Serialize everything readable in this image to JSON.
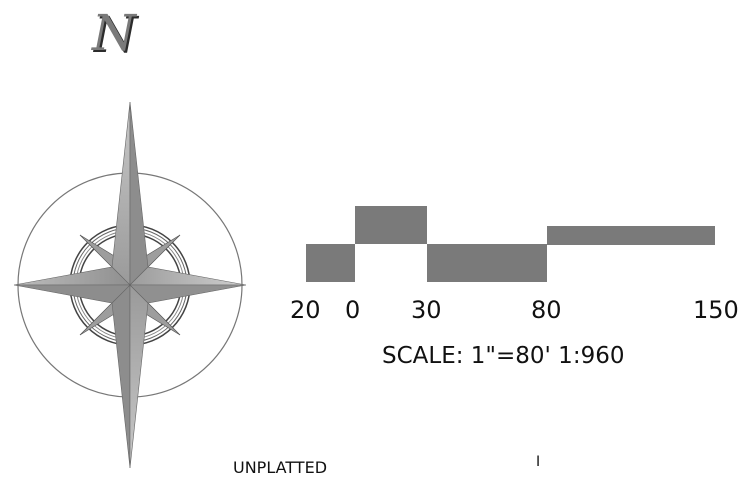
{
  "north_arrow": {
    "letter": "N",
    "icon": "north-arrow-compass-rose-icon",
    "ring_color": "#777777",
    "star_color": "#a8a8a8"
  },
  "scale_bar": {
    "tick_labels": [
      "20",
      "0",
      "30",
      "80",
      "150"
    ],
    "scale_text": "SCALE: 1\"=80'  1:960",
    "bar_color": "#7a7a7a"
  },
  "unplatted_label": "UNPLATTED",
  "small_mark": "I"
}
